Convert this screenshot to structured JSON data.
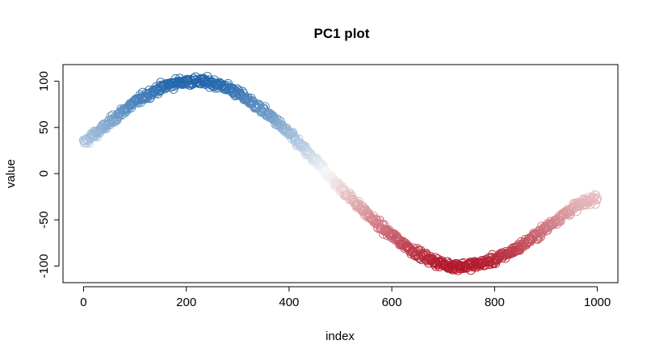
{
  "chart_data": {
    "type": "scatter",
    "title": "PC1 plot",
    "xlabel": "index",
    "ylabel": "value",
    "xlim": [
      -40,
      1040
    ],
    "ylim": [
      -118,
      118
    ],
    "x_ticks": [
      0,
      200,
      400,
      600,
      800,
      1000
    ],
    "y_ticks": [
      -100,
      -50,
      0,
      50,
      100
    ],
    "marker": "open-circle",
    "grid": false,
    "legend": "none",
    "color_scale": {
      "type": "diverging",
      "low_color": "#b2182b",
      "mid_color": "#f7f7f7",
      "high_color": "#2166ac",
      "low_value": -100,
      "high_value": 100
    },
    "n_points": 1000,
    "series": [
      {
        "x": [
          0,
          20,
          40,
          60,
          80,
          100,
          120,
          140,
          160,
          180,
          200,
          220,
          240,
          260,
          280,
          300,
          320,
          340,
          360,
          380,
          400,
          420,
          440,
          460,
          480,
          500,
          520,
          540,
          560,
          580,
          600,
          620,
          640,
          660,
          680,
          700,
          720,
          740,
          760,
          780,
          800,
          820,
          840,
          860,
          880,
          900,
          920,
          940,
          960,
          980,
          1000
        ],
        "y": [
          33,
          42,
          50,
          60,
          69,
          77,
          84,
          90,
          95,
          98,
          100,
          100,
          99,
          97,
          93,
          87,
          80,
          72,
          64,
          54,
          43,
          32,
          20,
          9,
          -3,
          -15,
          -26,
          -37,
          -48,
          -58,
          -67,
          -75,
          -83,
          -89,
          -94,
          -98,
          -100,
          -100,
          -99,
          -96,
          -93,
          -88,
          -82,
          -75,
          -67,
          -59,
          -50,
          -42,
          -35,
          -30,
          -25
        ]
      }
    ]
  }
}
